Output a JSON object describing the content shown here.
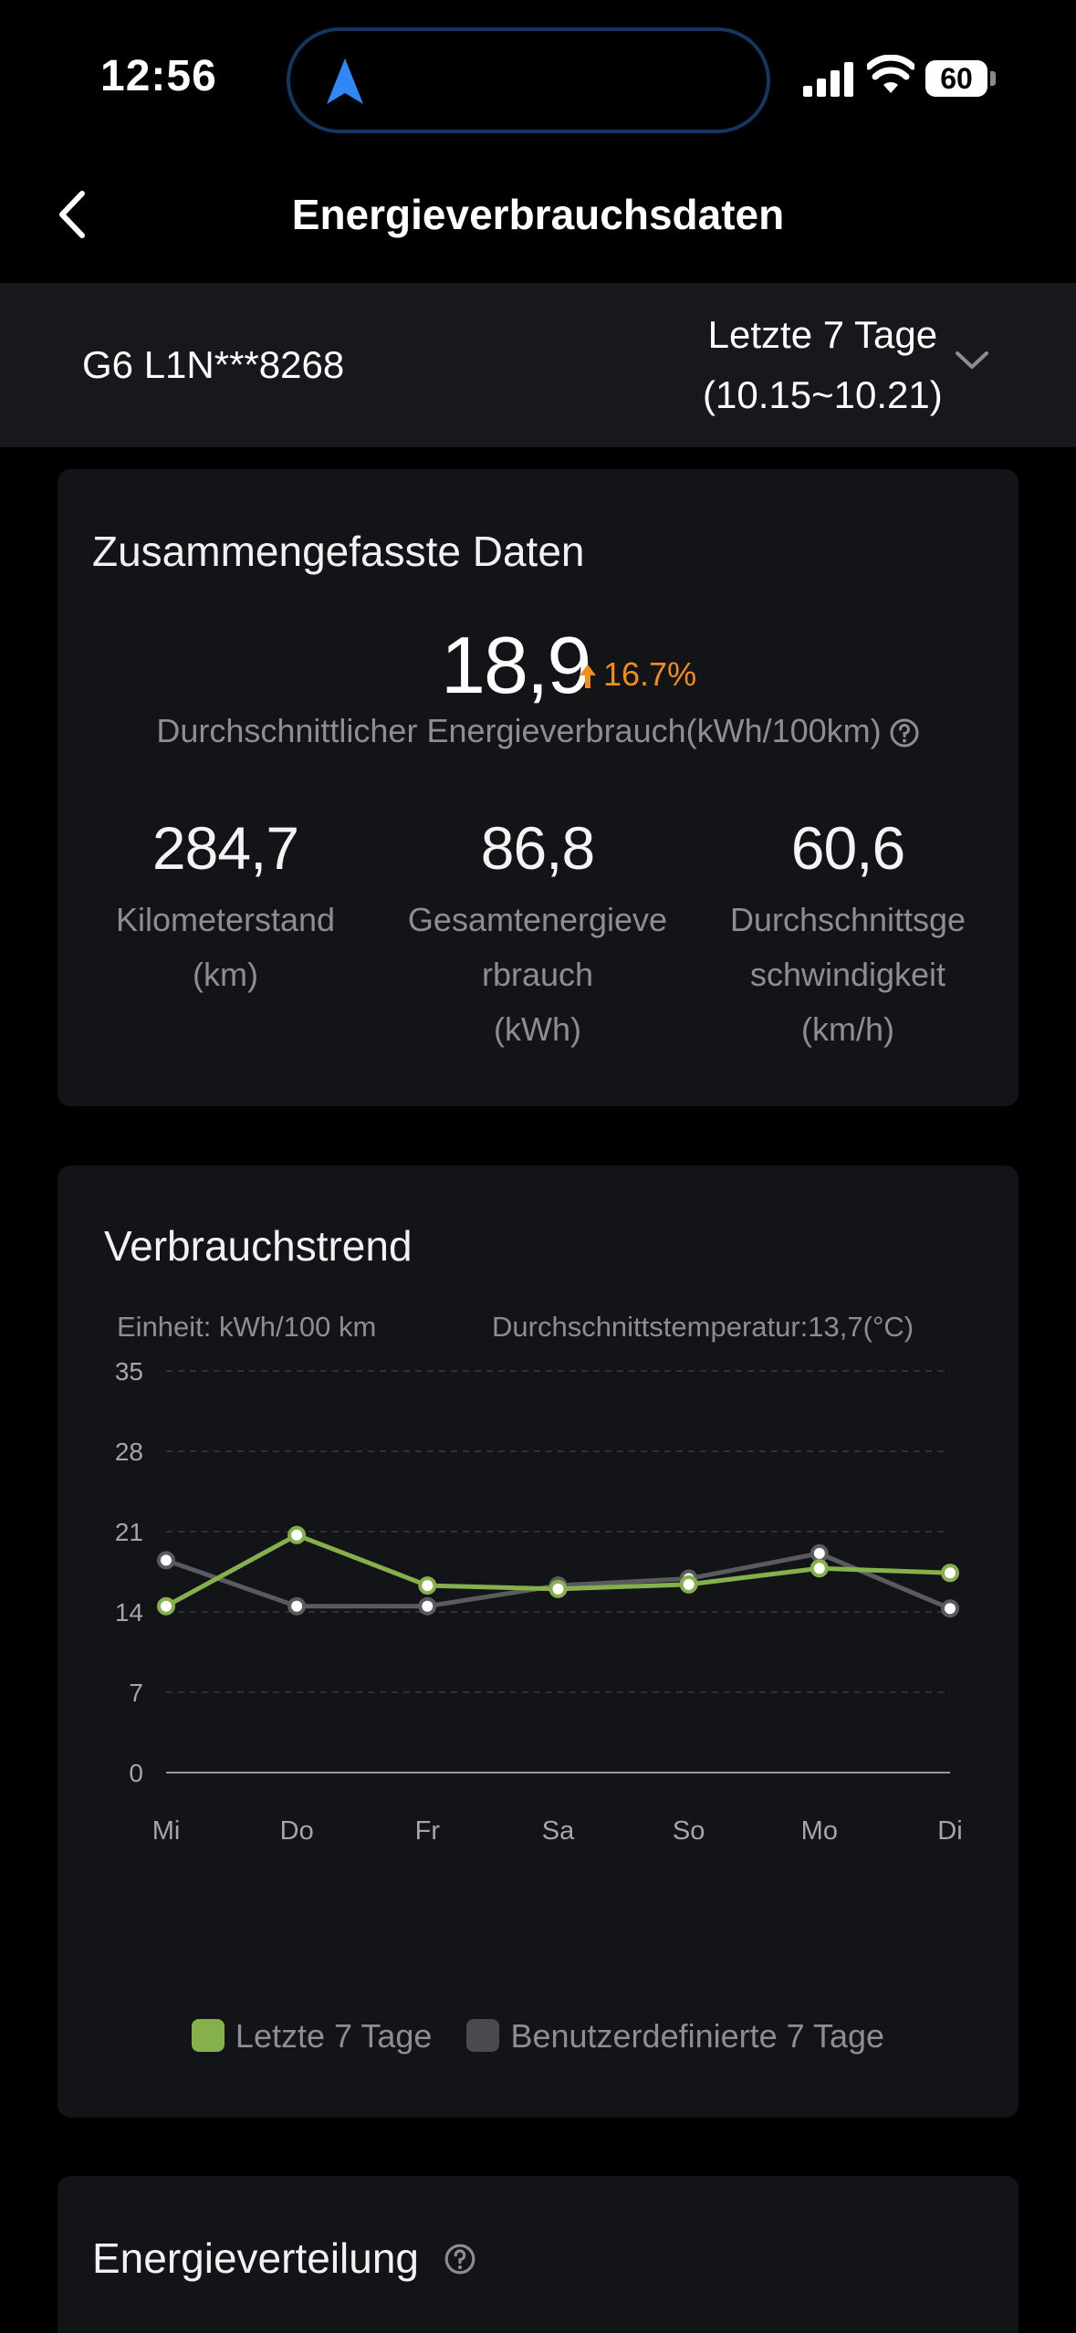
{
  "status_bar": {
    "time": "12:56",
    "battery": "60"
  },
  "nav": {
    "title": "Energieverbrauchsdaten"
  },
  "vehicle": {
    "name": "G6 L1N***8268",
    "period_line1": "Letzte 7 Tage",
    "period_line2": "(10.15~10.21)"
  },
  "summary": {
    "title": "Zusammengefasste Daten",
    "avg_value": "18,9",
    "change": "16.7%",
    "avg_label": "Durchschnittlicher Energieverbrauch(kWh/100km)",
    "stats": [
      {
        "value": "284,7",
        "label_lines": [
          "Kilometerstand",
          "(km)"
        ]
      },
      {
        "value": "86,8",
        "label_lines": [
          "Gesamtenergieve",
          "rbrauch",
          "(kWh)"
        ]
      },
      {
        "value": "60,6",
        "label_lines": [
          "Durchschnittsge",
          "schwindigkeit",
          "(km/h)"
        ]
      }
    ]
  },
  "trend": {
    "title": "Verbrauchstrend",
    "unit": "Einheit: kWh/100 km",
    "temperature": "Durchschnittstemperatur:13,7(°C)"
  },
  "chart_data": {
    "type": "line",
    "categories": [
      "Mi",
      "Do",
      "Fr",
      "Sa",
      "So",
      "Mo",
      "Di"
    ],
    "yticks": [
      0,
      7,
      14,
      21,
      28,
      35
    ],
    "ylim": [
      0,
      35
    ],
    "grid": true,
    "legend_position": "bottom",
    "series": [
      {
        "name": "Letzte 7 Tage",
        "color": "#86b04c",
        "values": [
          14.5,
          20.7,
          16.3,
          16.0,
          16.4,
          17.8,
          17.4
        ]
      },
      {
        "name": "Benutzerdefinierte 7 Tage",
        "color": "#5a5b5f",
        "values": [
          18.5,
          14.5,
          14.5,
          16.3,
          16.9,
          19.1,
          14.3
        ]
      }
    ]
  },
  "distribution": {
    "title": "Energieverteilung"
  },
  "colors": {
    "accent_green": "#86b04c",
    "compare_gray": "#5a5b5f",
    "change_orange": "#ef8d1e",
    "island_border": "#123760",
    "nav_arrow_blue": "#2f88f6"
  }
}
